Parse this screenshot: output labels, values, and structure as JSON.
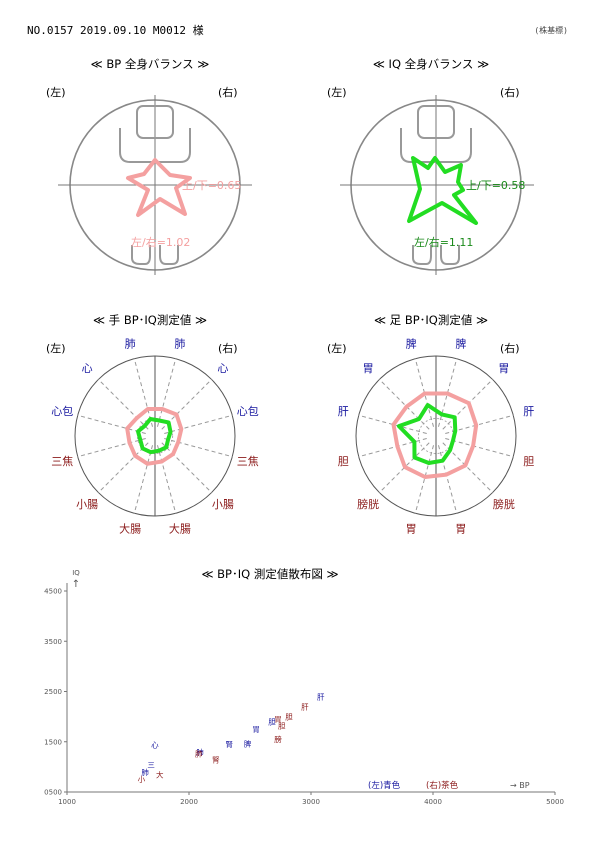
{
  "header": {
    "record_line": "NO.0157  2019.09.10   M0012 様",
    "right_note": "(株基標)"
  },
  "side_labels": {
    "left": "(左)",
    "right": "(右)"
  },
  "balance": {
    "bp": {
      "title": "≪ BP 全身バランス ≫",
      "ud_label": "上/下=0.65",
      "lr_label": "左/右=1.02",
      "color": "#f4a0a0"
    },
    "iq": {
      "title": "≪ IQ 全身バランス ≫",
      "ud_label": "上/下=0.58",
      "lr_label": "左/右=1.11",
      "color": "#22dd22"
    }
  },
  "radar_hand": {
    "title": "≪ 手 BP･IQ測定値 ≫",
    "labels": [
      "肺",
      "肺",
      "心",
      "心",
      "心包",
      "心包",
      "三焦",
      "三焦",
      "小腸",
      "小腸",
      "大腸",
      "大腸"
    ],
    "label_colors": [
      "#1a1aa0",
      "#1a1aa0",
      "#1a1aa0",
      "#1a1aa0",
      "#1a1aa0",
      "#1a1aa0",
      "#8b1a1a",
      "#8b1a1a",
      "#8b1a1a",
      "#8b1a1a",
      "#8b1a1a",
      "#8b1a1a"
    ],
    "bp": [
      0.35,
      0.35,
      0.32,
      0.38,
      0.36,
      0.34,
      0.33,
      0.3,
      0.35,
      0.32,
      0.36,
      0.33
    ],
    "iq": [
      0.22,
      0.2,
      0.18,
      0.24,
      0.22,
      0.2,
      0.19,
      0.17,
      0.22,
      0.2,
      0.21,
      0.19
    ],
    "bp_color": "#f4a0a0",
    "iq_color": "#22dd22"
  },
  "radar_foot": {
    "title": "≪ 足 BP･IQ測定値 ≫",
    "labels": [
      "脾",
      "脾",
      "胃",
      "胃",
      "肝",
      "肝",
      "胆",
      "胆",
      "膀胱",
      "膀胱",
      "胃",
      "胃"
    ],
    "label_colors": [
      "#1a1aa0",
      "#1a1aa0",
      "#1a1aa0",
      "#1a1aa0",
      "#1a1aa0",
      "#1a1aa0",
      "#8b1a1a",
      "#8b1a1a",
      "#8b1a1a",
      "#8b1a1a",
      "#8b1a1a",
      "#8b1a1a"
    ],
    "bp": [
      0.55,
      0.55,
      0.52,
      0.58,
      0.55,
      0.52,
      0.5,
      0.48,
      0.55,
      0.52,
      0.53,
      0.5
    ],
    "iq": [
      0.4,
      0.28,
      0.3,
      0.33,
      0.48,
      0.25,
      0.28,
      0.22,
      0.38,
      0.25,
      0.35,
      0.32
    ],
    "bp_color": "#f4a0a0",
    "iq_color": "#22dd22"
  },
  "chart_data": {
    "type": "scatter",
    "title": "≪ BP･IQ 測定値散布図 ≫",
    "xlabel": "→ BP",
    "ylabel": "IQ",
    "y_arrow": "↑",
    "xlim": [
      1000,
      5000
    ],
    "ylim": [
      500,
      4500
    ],
    "x_ticks": [
      "1000",
      "2000",
      "3000",
      "4000",
      "5000"
    ],
    "y_ticks": [
      "0500",
      "1500",
      "2500",
      "3500",
      "4500"
    ],
    "legend": {
      "left": "(左)青色",
      "right": "(右)茶色",
      "left_color": "#1a1aa0",
      "right_color": "#8b1a1a"
    },
    "series": [
      {
        "name": "(左)青色",
        "color": "#1a1aa0",
        "points": [
          {
            "label": "肝",
            "x": 3080,
            "y": 2400
          },
          {
            "label": "胃",
            "x": 2550,
            "y": 1750
          },
          {
            "label": "胆",
            "x": 2680,
            "y": 1900
          },
          {
            "label": "腎",
            "x": 2330,
            "y": 1460
          },
          {
            "label": "脾",
            "x": 2480,
            "y": 1470
          },
          {
            "label": "心",
            "x": 1720,
            "y": 1450
          },
          {
            "label": "三",
            "x": 1690,
            "y": 1050
          },
          {
            "label": "肺",
            "x": 1640,
            "y": 900
          },
          {
            "label": "肺",
            "x": 2090,
            "y": 1300
          }
        ]
      },
      {
        "name": "(右)茶色",
        "color": "#8b1a1a",
        "points": [
          {
            "label": "肝",
            "x": 2950,
            "y": 2200
          },
          {
            "label": "胆",
            "x": 2820,
            "y": 2000
          },
          {
            "label": "胃",
            "x": 2730,
            "y": 1950
          },
          {
            "label": "胆",
            "x": 2760,
            "y": 1820
          },
          {
            "label": "膀",
            "x": 2730,
            "y": 1550
          },
          {
            "label": "腎",
            "x": 2220,
            "y": 1150
          },
          {
            "label": "大",
            "x": 1760,
            "y": 850
          },
          {
            "label": "肺",
            "x": 2080,
            "y": 1270
          },
          {
            "label": "小",
            "x": 1610,
            "y": 760
          }
        ]
      }
    ]
  }
}
